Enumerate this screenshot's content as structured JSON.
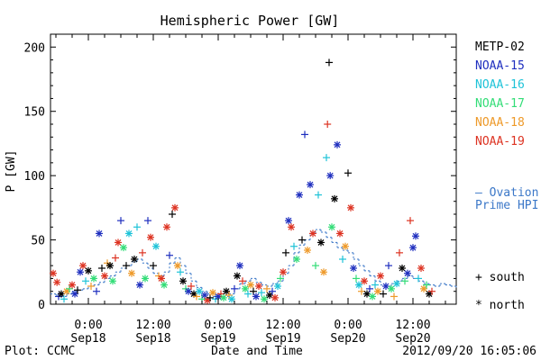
{
  "chart_data": {
    "type": "scatter",
    "title": "Hemispheric Power [GW]",
    "ylabel": "P [GW]",
    "xlabel": "Date and Time",
    "ylim": [
      0,
      210
    ],
    "xlim_hours_note": "",
    "yticks": [
      0,
      50,
      100,
      150,
      200
    ],
    "xticks": [
      {
        "line1": "0:00",
        "line2": "Sep18",
        "t": 0
      },
      {
        "line1": "12:00",
        "line2": "Sep18",
        "t": 12
      },
      {
        "line1": "0:00",
        "line2": "Sep19",
        "t": 24
      },
      {
        "line1": "12:00",
        "line2": "Sep19",
        "t": 36
      },
      {
        "line1": "0:00",
        "line2": "Sep20",
        "t": 48
      },
      {
        "line1": "12:00",
        "line2": "Sep20",
        "t": 60
      }
    ],
    "x_range": [
      -7,
      68
    ],
    "legend": [
      {
        "name": "METP-02",
        "color": "#000000"
      },
      {
        "name": "NOAA-15",
        "color": "#1f2fbf"
      },
      {
        "name": "NOAA-16",
        "color": "#1fc3d8"
      },
      {
        "name": "NOAA-17",
        "color": "#33dd77"
      },
      {
        "name": "NOAA-18",
        "color": "#ee9a2a"
      },
      {
        "name": "NOAA-19",
        "color": "#dd3322"
      }
    ],
    "ovation_label_1": "— Ovation",
    "ovation_label_2": "Prime HPI",
    "ovation_color": "#3c78c8",
    "marker_legend": [
      {
        "symbol": "+",
        "label": "south"
      },
      {
        "symbol": "*",
        "label": "north"
      }
    ],
    "ovation_series": [
      [
        -7,
        8
      ],
      [
        -6,
        7
      ],
      [
        -5,
        6
      ],
      [
        -4,
        8
      ],
      [
        -3,
        10
      ],
      [
        -2,
        11
      ],
      [
        -1,
        12
      ],
      [
        0,
        14
      ],
      [
        1,
        15
      ],
      [
        2,
        17
      ],
      [
        3,
        20
      ],
      [
        4,
        22
      ],
      [
        5,
        25
      ],
      [
        6,
        28
      ],
      [
        7,
        30
      ],
      [
        8,
        33
      ],
      [
        9,
        35
      ],
      [
        10,
        32
      ],
      [
        11,
        28
      ],
      [
        12,
        24
      ],
      [
        13,
        22
      ],
      [
        14,
        25
      ],
      [
        15,
        32
      ],
      [
        16,
        36
      ],
      [
        17,
        30
      ],
      [
        18,
        24
      ],
      [
        19,
        18
      ],
      [
        20,
        13
      ],
      [
        21,
        10
      ],
      [
        22,
        8
      ],
      [
        23,
        6
      ],
      [
        24,
        5
      ],
      [
        25,
        6
      ],
      [
        26,
        8
      ],
      [
        27,
        12
      ],
      [
        28,
        16
      ],
      [
        29,
        18
      ],
      [
        30,
        20
      ],
      [
        31,
        17
      ],
      [
        32,
        15
      ],
      [
        33,
        14
      ],
      [
        34,
        16
      ],
      [
        35,
        18
      ],
      [
        36,
        24
      ],
      [
        37,
        30
      ],
      [
        38,
        40
      ],
      [
        39,
        46
      ],
      [
        40,
        50
      ],
      [
        41,
        55
      ],
      [
        42,
        58
      ],
      [
        43,
        56
      ],
      [
        44,
        52
      ],
      [
        45,
        48
      ],
      [
        46,
        44
      ],
      [
        47,
        42
      ],
      [
        48,
        40
      ],
      [
        49,
        35
      ],
      [
        50,
        30
      ],
      [
        51,
        26
      ],
      [
        52,
        22
      ],
      [
        53,
        18
      ],
      [
        54,
        15
      ],
      [
        55,
        14
      ],
      [
        56,
        16
      ],
      [
        57,
        18
      ],
      [
        58,
        20
      ],
      [
        59,
        22
      ],
      [
        60,
        20
      ],
      [
        61,
        18
      ],
      [
        62,
        16
      ],
      [
        63,
        15
      ],
      [
        64,
        14
      ],
      [
        65,
        16
      ],
      [
        66,
        15
      ],
      [
        67,
        14
      ],
      [
        68,
        13
      ]
    ],
    "points": [
      {
        "x": -6.5,
        "y": 24,
        "sat": 5,
        "m": "*"
      },
      {
        "x": -5.8,
        "y": 17,
        "sat": 5,
        "m": "*"
      },
      {
        "x": -5.5,
        "y": 6,
        "sat": 1,
        "m": "+"
      },
      {
        "x": -5,
        "y": 8,
        "sat": 0,
        "m": "*"
      },
      {
        "x": -4.5,
        "y": 4,
        "sat": 2,
        "m": "+"
      },
      {
        "x": -4,
        "y": 10,
        "sat": 4,
        "m": "*"
      },
      {
        "x": -3.5,
        "y": 12,
        "sat": 3,
        "m": "+"
      },
      {
        "x": -3,
        "y": 15,
        "sat": 5,
        "m": "*"
      },
      {
        "x": -2.5,
        "y": 8,
        "sat": 1,
        "m": "*"
      },
      {
        "x": -2,
        "y": 11,
        "sat": 0,
        "m": "+"
      },
      {
        "x": -1.5,
        "y": 25,
        "sat": 1,
        "m": "*"
      },
      {
        "x": -1,
        "y": 30,
        "sat": 5,
        "m": "*"
      },
      {
        "x": -0.5,
        "y": 18,
        "sat": 2,
        "m": "+"
      },
      {
        "x": 0,
        "y": 26,
        "sat": 0,
        "m": "*"
      },
      {
        "x": 0.5,
        "y": 14,
        "sat": 4,
        "m": "+"
      },
      {
        "x": 1,
        "y": 20,
        "sat": 3,
        "m": "*"
      },
      {
        "x": 1.5,
        "y": 10,
        "sat": 1,
        "m": "+"
      },
      {
        "x": 2,
        "y": 55,
        "sat": 1,
        "m": "*"
      },
      {
        "x": 2.5,
        "y": 28,
        "sat": 0,
        "m": "+"
      },
      {
        "x": 3,
        "y": 22,
        "sat": 5,
        "m": "*"
      },
      {
        "x": 3.5,
        "y": 32,
        "sat": 4,
        "m": "+"
      },
      {
        "x": 4,
        "y": 30,
        "sat": 0,
        "m": "*"
      },
      {
        "x": 4.5,
        "y": 18,
        "sat": 3,
        "m": "*"
      },
      {
        "x": 5,
        "y": 36,
        "sat": 5,
        "m": "+"
      },
      {
        "x": 5.5,
        "y": 48,
        "sat": 5,
        "m": "*"
      },
      {
        "x": 6,
        "y": 65,
        "sat": 1,
        "m": "+"
      },
      {
        "x": 6.5,
        "y": 44,
        "sat": 3,
        "m": "*"
      },
      {
        "x": 7,
        "y": 30,
        "sat": 0,
        "m": "+"
      },
      {
        "x": 7.5,
        "y": 55,
        "sat": 2,
        "m": "*"
      },
      {
        "x": 8,
        "y": 24,
        "sat": 4,
        "m": "*"
      },
      {
        "x": 8.5,
        "y": 35,
        "sat": 0,
        "m": "*"
      },
      {
        "x": 9,
        "y": 60,
        "sat": 2,
        "m": "+"
      },
      {
        "x": 9.5,
        "y": 15,
        "sat": 1,
        "m": "*"
      },
      {
        "x": 10,
        "y": 40,
        "sat": 5,
        "m": "+"
      },
      {
        "x": 10.5,
        "y": 20,
        "sat": 3,
        "m": "*"
      },
      {
        "x": 11,
        "y": 65,
        "sat": 1,
        "m": "+"
      },
      {
        "x": 11.5,
        "y": 52,
        "sat": 5,
        "m": "*"
      },
      {
        "x": 12,
        "y": 30,
        "sat": 0,
        "m": "+"
      },
      {
        "x": 12.5,
        "y": 45,
        "sat": 2,
        "m": "*"
      },
      {
        "x": 13,
        "y": 22,
        "sat": 4,
        "m": "+"
      },
      {
        "x": 13.5,
        "y": 20,
        "sat": 5,
        "m": "*"
      },
      {
        "x": 14,
        "y": 15,
        "sat": 3,
        "m": "*"
      },
      {
        "x": 14.5,
        "y": 60,
        "sat": 5,
        "m": "*"
      },
      {
        "x": 15,
        "y": 38,
        "sat": 1,
        "m": "+"
      },
      {
        "x": 15.5,
        "y": 70,
        "sat": 0,
        "m": "+"
      },
      {
        "x": 16,
        "y": 75,
        "sat": 5,
        "m": "*"
      },
      {
        "x": 16.5,
        "y": 30,
        "sat": 4,
        "m": "*"
      },
      {
        "x": 17,
        "y": 25,
        "sat": 2,
        "m": "+"
      },
      {
        "x": 17.5,
        "y": 18,
        "sat": 0,
        "m": "*"
      },
      {
        "x": 18,
        "y": 12,
        "sat": 3,
        "m": "+"
      },
      {
        "x": 18.5,
        "y": 10,
        "sat": 1,
        "m": "*"
      },
      {
        "x": 19,
        "y": 14,
        "sat": 5,
        "m": "+"
      },
      {
        "x": 19.5,
        "y": 8,
        "sat": 0,
        "m": "*"
      },
      {
        "x": 20,
        "y": 6,
        "sat": 4,
        "m": "+"
      },
      {
        "x": 20.5,
        "y": 10,
        "sat": 2,
        "m": "*"
      },
      {
        "x": 21,
        "y": 4,
        "sat": 3,
        "m": "+"
      },
      {
        "x": 21.5,
        "y": 7,
        "sat": 1,
        "m": "*"
      },
      {
        "x": 22,
        "y": 3,
        "sat": 5,
        "m": "*"
      },
      {
        "x": 22.5,
        "y": 5,
        "sat": 0,
        "m": "+"
      },
      {
        "x": 23,
        "y": 9,
        "sat": 4,
        "m": "*"
      },
      {
        "x": 23.5,
        "y": 4,
        "sat": 2,
        "m": "+"
      },
      {
        "x": 24,
        "y": 6,
        "sat": 1,
        "m": "*"
      },
      {
        "x": 24.5,
        "y": 8,
        "sat": 5,
        "m": "+"
      },
      {
        "x": 25,
        "y": 5,
        "sat": 3,
        "m": "*"
      },
      {
        "x": 25.5,
        "y": 10,
        "sat": 0,
        "m": "*"
      },
      {
        "x": 26,
        "y": 7,
        "sat": 4,
        "m": "+"
      },
      {
        "x": 26.5,
        "y": 4,
        "sat": 2,
        "m": "*"
      },
      {
        "x": 27,
        "y": 12,
        "sat": 1,
        "m": "+"
      },
      {
        "x": 27.5,
        "y": 22,
        "sat": 0,
        "m": "*"
      },
      {
        "x": 28,
        "y": 30,
        "sat": 1,
        "m": "*"
      },
      {
        "x": 28.5,
        "y": 18,
        "sat": 5,
        "m": "+"
      },
      {
        "x": 29,
        "y": 12,
        "sat": 3,
        "m": "*"
      },
      {
        "x": 29.5,
        "y": 8,
        "sat": 2,
        "m": "+"
      },
      {
        "x": 30,
        "y": 15,
        "sat": 4,
        "m": "*"
      },
      {
        "x": 30.5,
        "y": 10,
        "sat": 0,
        "m": "+"
      },
      {
        "x": 31,
        "y": 6,
        "sat": 1,
        "m": "*"
      },
      {
        "x": 31.5,
        "y": 14,
        "sat": 5,
        "m": "*"
      },
      {
        "x": 32,
        "y": 9,
        "sat": 2,
        "m": "+"
      },
      {
        "x": 32.5,
        "y": 4,
        "sat": 3,
        "m": "*"
      },
      {
        "x": 33,
        "y": 12,
        "sat": 4,
        "m": "+"
      },
      {
        "x": 33.5,
        "y": 7,
        "sat": 0,
        "m": "*"
      },
      {
        "x": 34,
        "y": 10,
        "sat": 1,
        "m": "+"
      },
      {
        "x": 34.5,
        "y": 5,
        "sat": 5,
        "m": "*"
      },
      {
        "x": 35,
        "y": 14,
        "sat": 2,
        "m": "*"
      },
      {
        "x": 35.5,
        "y": 20,
        "sat": 3,
        "m": "+"
      },
      {
        "x": 36,
        "y": 25,
        "sat": 5,
        "m": "*"
      },
      {
        "x": 36.5,
        "y": 40,
        "sat": 0,
        "m": "+"
      },
      {
        "x": 37,
        "y": 65,
        "sat": 1,
        "m": "*"
      },
      {
        "x": 37.5,
        "y": 60,
        "sat": 5,
        "m": "*"
      },
      {
        "x": 38,
        "y": 45,
        "sat": 2,
        "m": "+"
      },
      {
        "x": 38.5,
        "y": 35,
        "sat": 3,
        "m": "*"
      },
      {
        "x": 39,
        "y": 85,
        "sat": 1,
        "m": "*"
      },
      {
        "x": 39.5,
        "y": 50,
        "sat": 0,
        "m": "+"
      },
      {
        "x": 40,
        "y": 132,
        "sat": 1,
        "m": "+"
      },
      {
        "x": 40.5,
        "y": 42,
        "sat": 4,
        "m": "*"
      },
      {
        "x": 41,
        "y": 93,
        "sat": 1,
        "m": "*"
      },
      {
        "x": 41.5,
        "y": 55,
        "sat": 5,
        "m": "*"
      },
      {
        "x": 42,
        "y": 30,
        "sat": 3,
        "m": "+"
      },
      {
        "x": 42.5,
        "y": 85,
        "sat": 2,
        "m": "+"
      },
      {
        "x": 43,
        "y": 48,
        "sat": 0,
        "m": "*"
      },
      {
        "x": 43.5,
        "y": 25,
        "sat": 4,
        "m": "*"
      },
      {
        "x": 44,
        "y": 114,
        "sat": 2,
        "m": "+"
      },
      {
        "x": 44.2,
        "y": 140,
        "sat": 5,
        "m": "+"
      },
      {
        "x": 44.5,
        "y": 188,
        "sat": 0,
        "m": "+"
      },
      {
        "x": 44.7,
        "y": 100,
        "sat": 1,
        "m": "*"
      },
      {
        "x": 45,
        "y": 60,
        "sat": 3,
        "m": "*"
      },
      {
        "x": 45.5,
        "y": 82,
        "sat": 0,
        "m": "*"
      },
      {
        "x": 46,
        "y": 124,
        "sat": 1,
        "m": "*"
      },
      {
        "x": 46.5,
        "y": 55,
        "sat": 5,
        "m": "*"
      },
      {
        "x": 47,
        "y": 35,
        "sat": 2,
        "m": "+"
      },
      {
        "x": 47.5,
        "y": 45,
        "sat": 4,
        "m": "*"
      },
      {
        "x": 48,
        "y": 102,
        "sat": 0,
        "m": "+"
      },
      {
        "x": 48.5,
        "y": 75,
        "sat": 5,
        "m": "*"
      },
      {
        "x": 49,
        "y": 28,
        "sat": 1,
        "m": "*"
      },
      {
        "x": 49.5,
        "y": 20,
        "sat": 3,
        "m": "+"
      },
      {
        "x": 50,
        "y": 15,
        "sat": 2,
        "m": "*"
      },
      {
        "x": 50.5,
        "y": 10,
        "sat": 4,
        "m": "+"
      },
      {
        "x": 51,
        "y": 18,
        "sat": 5,
        "m": "*"
      },
      {
        "x": 51.5,
        "y": 8,
        "sat": 0,
        "m": "*"
      },
      {
        "x": 52,
        "y": 12,
        "sat": 1,
        "m": "+"
      },
      {
        "x": 52.5,
        "y": 6,
        "sat": 3,
        "m": "*"
      },
      {
        "x": 53,
        "y": 15,
        "sat": 2,
        "m": "+"
      },
      {
        "x": 53.5,
        "y": 10,
        "sat": 4,
        "m": "*"
      },
      {
        "x": 54,
        "y": 22,
        "sat": 5,
        "m": "*"
      },
      {
        "x": 54.5,
        "y": 8,
        "sat": 0,
        "m": "+"
      },
      {
        "x": 55,
        "y": 14,
        "sat": 1,
        "m": "*"
      },
      {
        "x": 55.5,
        "y": 30,
        "sat": 1,
        "m": "+"
      },
      {
        "x": 56,
        "y": 12,
        "sat": 3,
        "m": "*"
      },
      {
        "x": 56.5,
        "y": 6,
        "sat": 4,
        "m": "+"
      },
      {
        "x": 57,
        "y": 16,
        "sat": 2,
        "m": "*"
      },
      {
        "x": 57.5,
        "y": 40,
        "sat": 5,
        "m": "+"
      },
      {
        "x": 58,
        "y": 28,
        "sat": 0,
        "m": "*"
      },
      {
        "x": 58.5,
        "y": 18,
        "sat": 3,
        "m": "+"
      },
      {
        "x": 59,
        "y": 24,
        "sat": 1,
        "m": "*"
      },
      {
        "x": 59.5,
        "y": 65,
        "sat": 5,
        "m": "+"
      },
      {
        "x": 60,
        "y": 44,
        "sat": 1,
        "m": "*"
      },
      {
        "x": 60.5,
        "y": 53,
        "sat": 1,
        "m": "*"
      },
      {
        "x": 61,
        "y": 20,
        "sat": 2,
        "m": "+"
      },
      {
        "x": 61.5,
        "y": 28,
        "sat": 5,
        "m": "*"
      },
      {
        "x": 62,
        "y": 12,
        "sat": 4,
        "m": "*"
      },
      {
        "x": 62.5,
        "y": 15,
        "sat": 3,
        "m": "+"
      },
      {
        "x": 63,
        "y": 8,
        "sat": 0,
        "m": "*"
      },
      {
        "x": 63.5,
        "y": 10,
        "sat": 5,
        "m": "+"
      }
    ]
  },
  "footer": {
    "left": "Plot: CCMC",
    "center": "Date and Time",
    "right": "2012/09/20 16:05:06"
  }
}
